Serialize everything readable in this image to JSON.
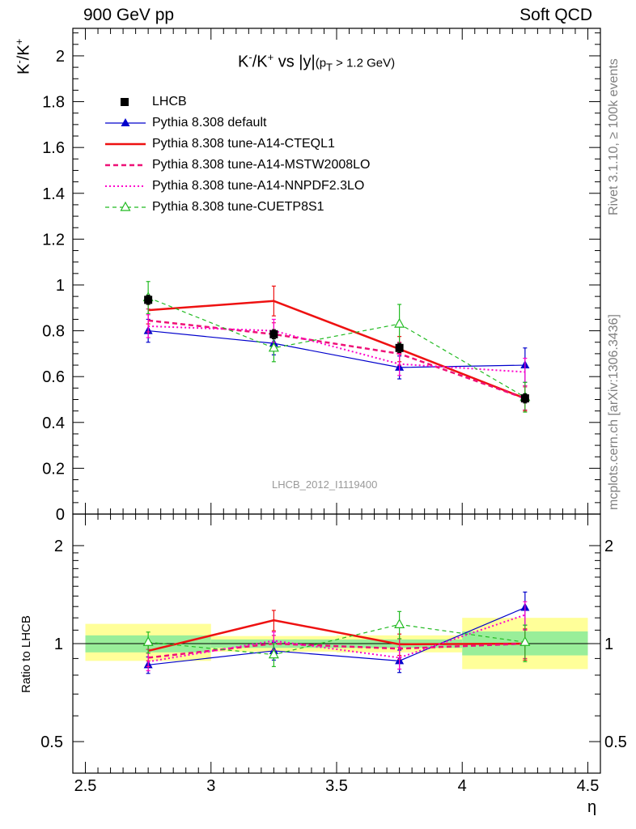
{
  "header": {
    "left": "900 GeV pp",
    "right": "Soft QCD"
  },
  "side_notes": {
    "rivet": "Rivet 3.1.10, ≥ 100k events",
    "mcplots": "mcplots.cern.ch [arXiv:1306.3436]"
  },
  "watermark": "LHCB_2012_I1119400",
  "title": {
    "main": "K",
    "sup1": "-",
    "slash": "/K",
    "sup2": "+",
    "rest": " vs |y|",
    "paren": "(p",
    "sub": "T",
    "cut": " > 1.2 GeV)"
  },
  "axes": {
    "ylabel_main": {
      "k": "K",
      "sup1": "-",
      "slash": "/K",
      "sup2": "+"
    },
    "ylabel_ratio": "Ratio to LHCB",
    "xlabel": "η"
  },
  "chart_data": [
    {
      "type": "line",
      "panel": "main",
      "xlim": [
        2.45,
        4.55
      ],
      "ylim": [
        0,
        2.12
      ],
      "x_ticks": [
        2.5,
        3,
        3.5,
        4,
        4.5
      ],
      "y_ticks": [
        0,
        0.2,
        0.4,
        0.6,
        0.8,
        1,
        1.2,
        1.4,
        1.6,
        1.8,
        2
      ],
      "y_tick_labels": [
        "0",
        "0.2",
        "0.4",
        "0.6",
        "0.8",
        "1",
        "1.2",
        "1.4",
        "1.6",
        "1.8",
        "2"
      ],
      "legend_position": "top-left",
      "series": [
        {
          "name": "LHCB",
          "style": "data",
          "color": "#000000",
          "x": [
            2.75,
            3.25,
            3.75,
            4.25
          ],
          "y": [
            0.935,
            0.785,
            0.725,
            0.505
          ],
          "yerr": [
            0.02,
            0.02,
            0.02,
            0.02
          ],
          "band_ranges": [
            [
              2.5,
              3.0
            ],
            [
              3.0,
              3.5
            ],
            [
              3.5,
              4.0
            ],
            [
              4.0,
              4.5
            ]
          ]
        },
        {
          "name": "Pythia 8.308 default",
          "style": "line-tri",
          "color": "#0000cc",
          "x": [
            2.75,
            3.25,
            3.75,
            4.25
          ],
          "y": [
            0.8,
            0.745,
            0.64,
            0.65
          ],
          "yerr": [
            0.05,
            0.05,
            0.05,
            0.075
          ]
        },
        {
          "name": "Pythia 8.308 tune-A14-CTEQL1",
          "style": "solid-thick",
          "color": "#ee1111",
          "x": [
            2.75,
            3.25,
            3.75,
            4.25
          ],
          "y": [
            0.89,
            0.93,
            0.72,
            0.505
          ],
          "yerr": [
            0.06,
            0.065,
            0.055,
            0.055
          ]
        },
        {
          "name": "Pythia 8.308 tune-A14-MSTW2008LO",
          "style": "dashed-thick",
          "color": "#ee1177",
          "x": [
            2.75,
            3.25,
            3.75,
            4.25
          ],
          "y": [
            0.845,
            0.785,
            0.7,
            0.505
          ],
          "yerr": [
            0.05,
            0.05,
            0.05,
            0.05
          ]
        },
        {
          "name": "Pythia 8.308 tune-A14-NNPDF2.3LO",
          "style": "dotted",
          "color": "#ff00cc",
          "x": [
            2.75,
            3.25,
            3.75,
            4.25
          ],
          "y": [
            0.82,
            0.8,
            0.655,
            0.62
          ],
          "yerr": [
            0.05,
            0.05,
            0.05,
            0.06
          ]
        },
        {
          "name": "Pythia 8.308 tune-CUETP8S1",
          "style": "dashed-open-tri",
          "color": "#22bb22",
          "x": [
            2.75,
            3.25,
            3.75,
            4.25
          ],
          "y": [
            0.945,
            0.725,
            0.83,
            0.51
          ],
          "yerr": [
            0.07,
            0.06,
            0.085,
            0.065
          ]
        }
      ]
    },
    {
      "type": "line",
      "panel": "ratio",
      "ylabel": "Ratio to LHCB",
      "xlabel": "η",
      "x_tick_labels": [
        "2.5",
        "3",
        "3.5",
        "4",
        "4.5"
      ],
      "y_scale": "log",
      "ylim": [
        0.4,
        2.5
      ],
      "y_ticks": [
        0.5,
        1,
        2
      ],
      "y_tick_labels": [
        "0.5",
        "1",
        "2"
      ],
      "bands": [
        {
          "x": [
            2.5,
            3.0
          ],
          "inner": [
            0.94,
            1.06
          ],
          "outer": [
            0.885,
            1.15
          ]
        },
        {
          "x": [
            3.0,
            3.5
          ],
          "inner": [
            0.97,
            1.03
          ],
          "outer": [
            0.945,
            1.055
          ]
        },
        {
          "x": [
            3.5,
            4.0
          ],
          "inner": [
            0.97,
            1.03
          ],
          "outer": [
            0.94,
            1.06
          ]
        },
        {
          "x": [
            4.0,
            4.5
          ],
          "inner": [
            0.92,
            1.09
          ],
          "outer": [
            0.835,
            1.2
          ]
        }
      ],
      "series": [
        {
          "name": "Pythia 8.308 default",
          "color": "#0000cc",
          "style": "line-tri",
          "x": [
            2.75,
            3.25,
            3.75,
            4.25
          ],
          "y": [
            0.86,
            0.95,
            0.885,
            1.29
          ],
          "yerr": [
            0.05,
            0.06,
            0.07,
            0.15
          ]
        },
        {
          "name": "Pythia 8.308 tune-A14-CTEQL1",
          "color": "#ee1111",
          "style": "solid-thick",
          "x": [
            2.75,
            3.25,
            3.75,
            4.25
          ],
          "y": [
            0.95,
            1.18,
            0.995,
            1.0
          ],
          "yerr": [
            0.065,
            0.085,
            0.075,
            0.11
          ]
        },
        {
          "name": "Pythia 8.308 tune-A14-MSTW2008LO",
          "color": "#ee1177",
          "style": "dashed-thick",
          "x": [
            2.75,
            3.25,
            3.75,
            4.25
          ],
          "y": [
            0.905,
            1.0,
            0.965,
            1.0
          ],
          "yerr": [
            0.055,
            0.06,
            0.07,
            0.1
          ]
        },
        {
          "name": "Pythia 8.308 tune-A14-NNPDF2.3LO",
          "color": "#ff00cc",
          "style": "dotted",
          "x": [
            2.75,
            3.25,
            3.75,
            4.25
          ],
          "y": [
            0.88,
            1.02,
            0.905,
            1.225
          ],
          "yerr": [
            0.055,
            0.065,
            0.07,
            0.12
          ]
        },
        {
          "name": "Pythia 8.308 tune-CUETP8S1",
          "color": "#22bb22",
          "style": "dashed-open-tri",
          "x": [
            2.75,
            3.25,
            3.75,
            4.25
          ],
          "y": [
            1.01,
            0.925,
            1.145,
            1.01
          ],
          "yerr": [
            0.075,
            0.075,
            0.11,
            0.13
          ]
        }
      ]
    }
  ]
}
